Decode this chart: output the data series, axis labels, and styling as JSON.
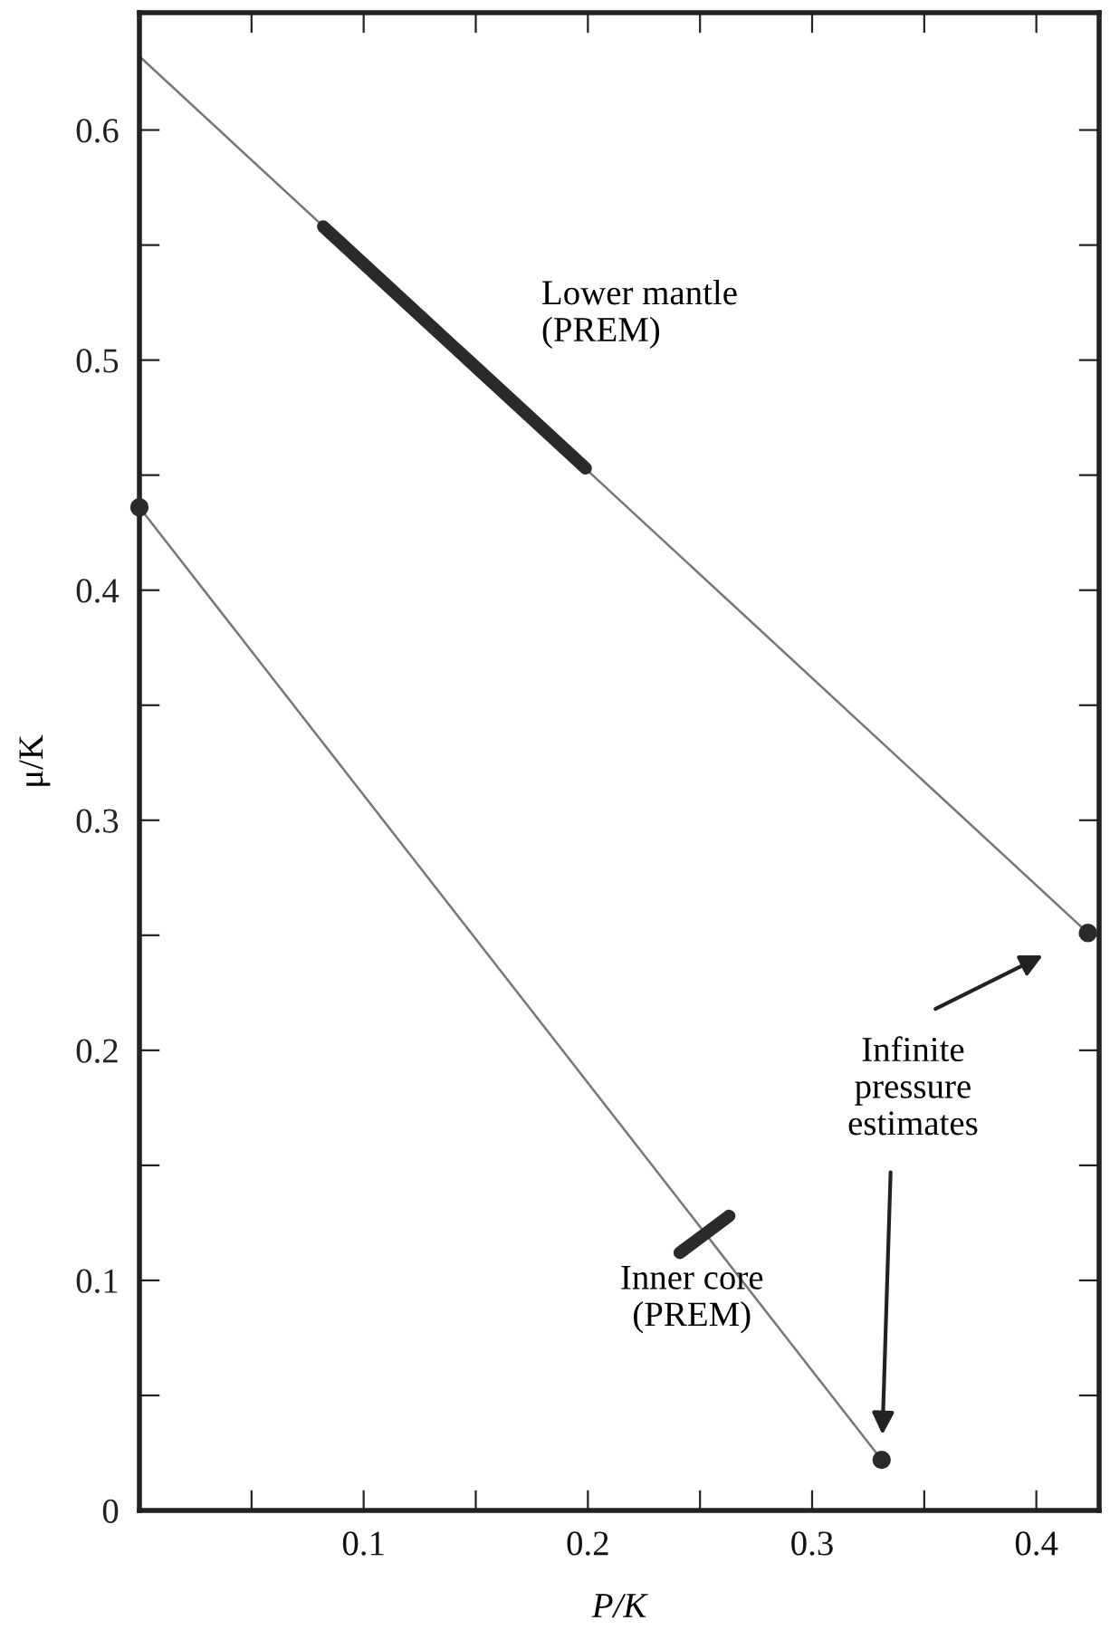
{
  "chart_data": {
    "type": "line",
    "xlabel": "P/K",
    "ylabel": "μ/K",
    "xlim": [
      0,
      0.428
    ],
    "ylim": [
      0,
      0.651
    ],
    "xticks": [
      {
        "value": 0,
        "label": null
      },
      {
        "value": 0.05,
        "label": null
      },
      0.1,
      {
        "value": 0.15,
        "label": null
      },
      0.2,
      {
        "value": 0.25,
        "label": null
      },
      0.3,
      {
        "value": 0.35,
        "label": null
      },
      0.4
    ],
    "yticks": [
      0,
      {
        "value": 0.05,
        "label": null
      },
      0.1,
      {
        "value": 0.15,
        "label": null
      },
      0.2,
      {
        "value": 0.25,
        "label": null
      },
      0.3,
      {
        "value": 0.35,
        "label": null
      },
      0.4,
      {
        "value": 0.45,
        "label": null
      },
      0.5,
      {
        "value": 0.55,
        "label": null
      },
      0.6
    ],
    "grid": false,
    "legend": false,
    "series": [
      {
        "color": "#777777",
        "x": [
          0,
          0.423
        ],
        "values": [
          0.632,
          0.251
        ]
      },
      {
        "color": "#777777",
        "x": [
          0,
          0.331
        ],
        "values": [
          0.436,
          0.022
        ]
      },
      {
        "color": "#2a2a2a",
        "x": [
          0.082,
          0.199
        ],
        "values": [
          0.558,
          0.453
        ]
      },
      {
        "color": "#2a2a2a",
        "x": [
          0.241,
          0.263
        ],
        "values": [
          0.112,
          0.128
        ]
      },
      {
        "type": "scatter",
        "color": "#2a2a2a",
        "x": [
          0,
          0.331,
          0.423
        ],
        "values": [
          0.436,
          0.022,
          0.251
        ]
      }
    ],
    "annotations": [
      {
        "text": "Lower mantle\n(PREM)",
        "x": 0.14,
        "y": 0.505
      },
      {
        "text": "Inner core\n(PREM)",
        "x": 0.252,
        "y": 0.12
      },
      "Infinite\npressure\nestimates"
    ]
  }
}
